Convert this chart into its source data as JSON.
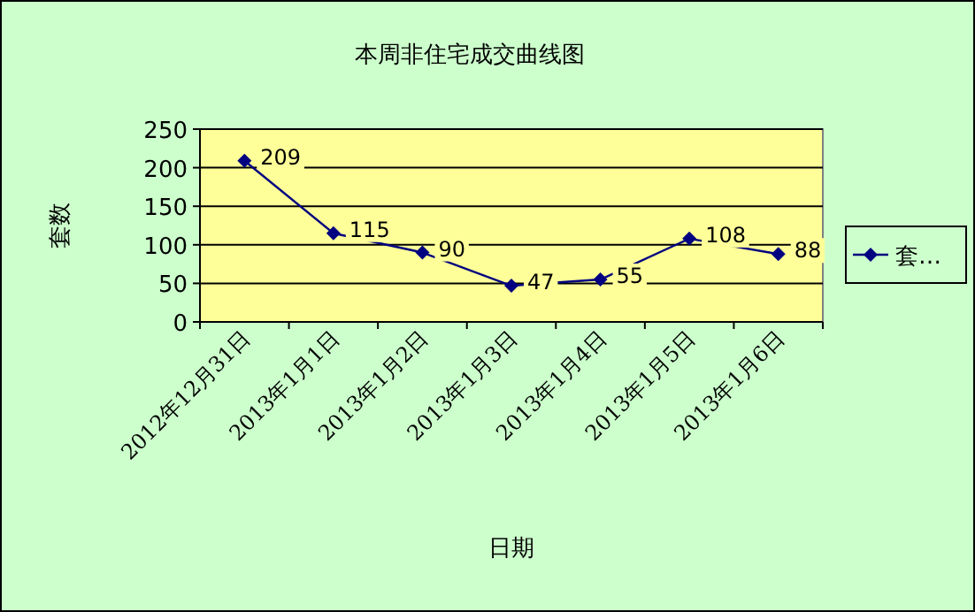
{
  "chart_data": {
    "type": "line",
    "title": "本周非住宅成交曲线图",
    "xlabel": "日期",
    "ylabel": "套数",
    "categories": [
      "2012年12月31日",
      "2013年1月1日",
      "2013年1月2日",
      "2013年1月3日",
      "2013年1月4日",
      "2013年1月5日",
      "2013年1月6日"
    ],
    "series": [
      {
        "name": "套…",
        "color": "#000080",
        "values": [
          209,
          115,
          90,
          47,
          55,
          108,
          88
        ]
      }
    ],
    "ylim": [
      0,
      250
    ],
    "yticks": [
      0,
      50,
      100,
      150,
      200,
      250
    ],
    "grid": "y",
    "legend": "right",
    "marker": "diamond",
    "line_style": "solid",
    "data_labels": true
  }
}
